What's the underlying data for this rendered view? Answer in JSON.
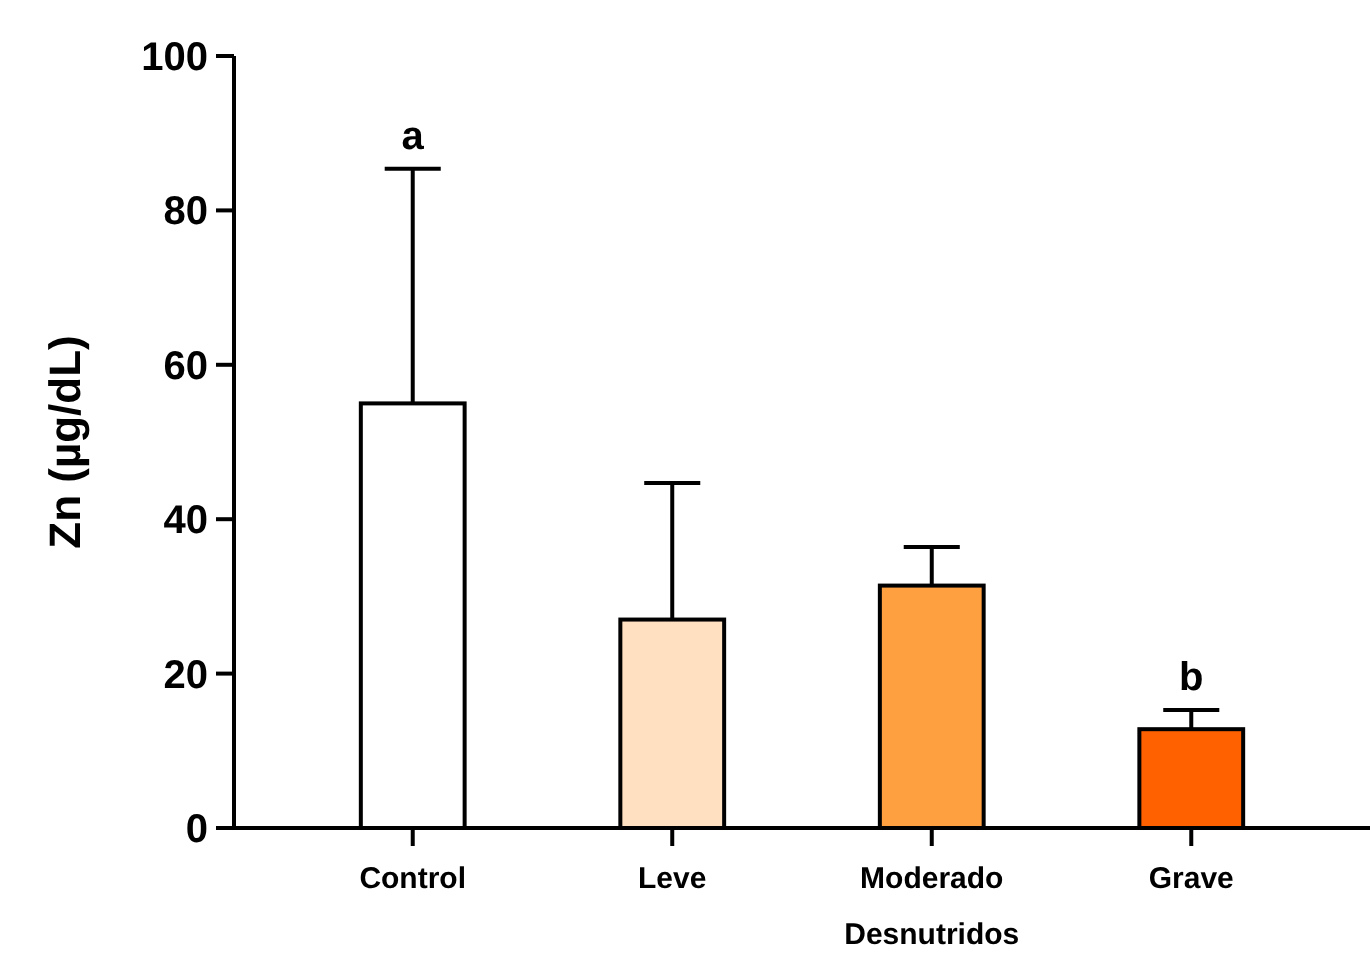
{
  "chart_data": {
    "type": "bar",
    "ylabel": "Zn (µg/dL)",
    "xlabel": "Desnutridos",
    "categories": [
      "Control",
      "Leve",
      "Moderado",
      "Grave"
    ],
    "values": [
      55,
      27,
      31.4,
      12.8
    ],
    "colors": [
      "#ffffff",
      "#ffe0c0",
      "#ffa040",
      "#ff6000"
    ],
    "errors": [
      [
        55,
        85.4
      ],
      [
        27,
        44.7
      ],
      [
        31.4,
        36.4
      ],
      [
        12.8,
        15.3
      ]
    ],
    "ylim": [
      0,
      100
    ],
    "yticks": [
      0,
      20,
      40,
      60,
      80,
      100
    ],
    "annotations": [
      {
        "text": "a",
        "x": "Control",
        "y": 85.4
      },
      {
        "text": "b",
        "x": "Grave",
        "y": 15.3
      }
    ]
  }
}
